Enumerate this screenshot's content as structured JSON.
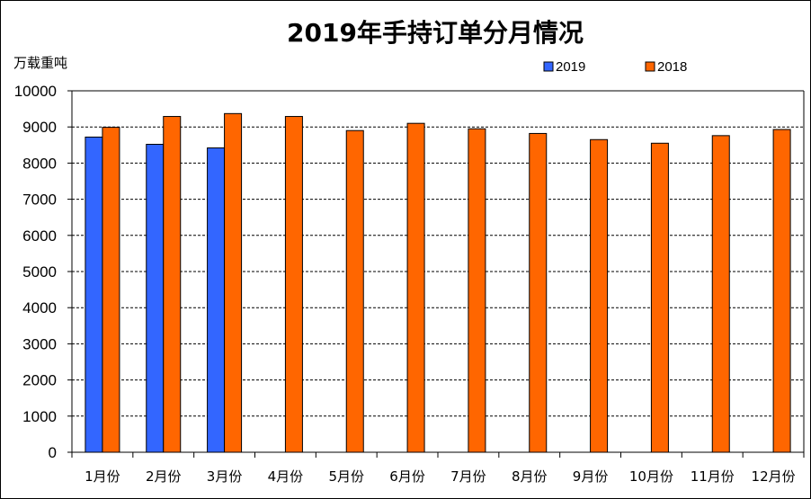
{
  "chart_data": {
    "type": "bar",
    "title": "2019年手持订单分月情况",
    "ylabel": "万载重吨",
    "xlabel": "",
    "categories": [
      "1月份",
      "2月份",
      "3月份",
      "4月份",
      "5月份",
      "6月份",
      "7月份",
      "8月份",
      "9月份",
      "10月份",
      "11月份",
      "12月份"
    ],
    "series": [
      {
        "name": "2019",
        "color": "#3366FF",
        "values": [
          8720,
          8520,
          8420,
          null,
          null,
          null,
          null,
          null,
          null,
          null,
          null,
          null
        ]
      },
      {
        "name": "2018",
        "color": "#FF6600",
        "values": [
          8990,
          9290,
          9370,
          9290,
          8900,
          9100,
          8950,
          8820,
          8650,
          8550,
          8760,
          8930
        ]
      }
    ],
    "ylim": [
      0,
      10000
    ],
    "yticks": [
      0,
      1000,
      2000,
      3000,
      4000,
      5000,
      6000,
      7000,
      8000,
      9000,
      10000
    ],
    "grid": true,
    "legend_position": "top-right"
  }
}
